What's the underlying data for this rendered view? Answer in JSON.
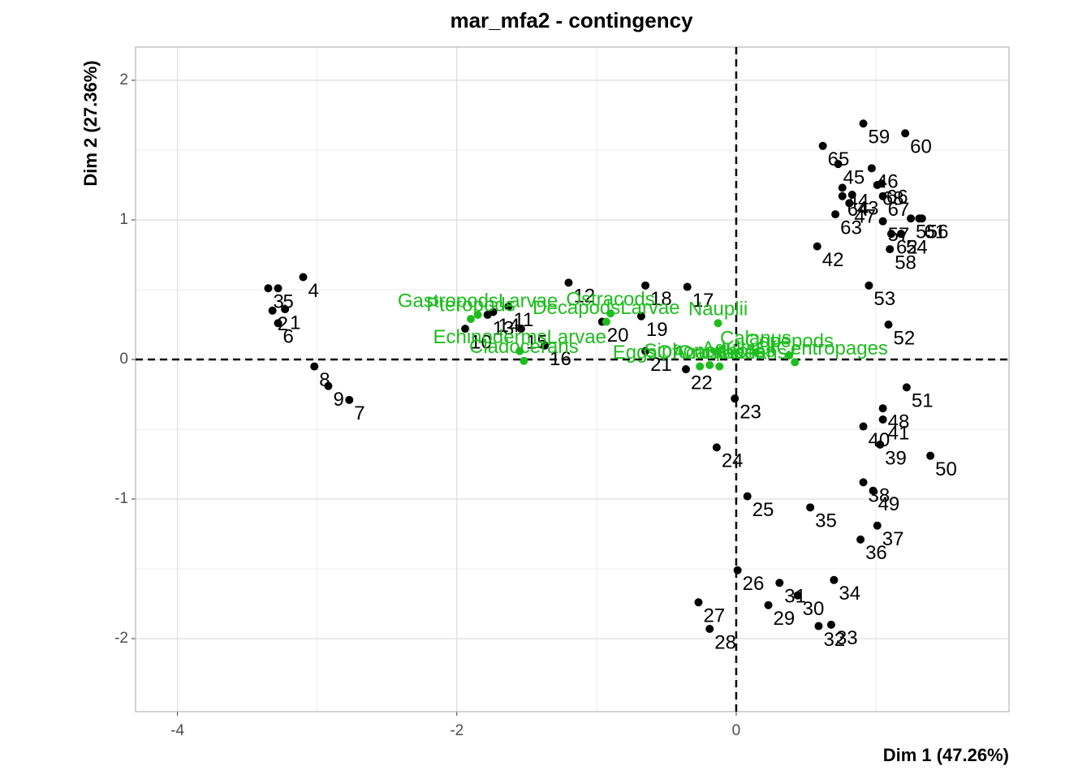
{
  "chart_data": {
    "type": "scatter",
    "title": "mar_mfa2 - contingency",
    "x_label": "Dim 1 (47.26%)",
    "y_label": "Dim 2 (27.36%)",
    "xlim": [
      -4.3,
      1.953
    ],
    "ylim": [
      -2.523,
      2.238
    ],
    "xticks": [
      -4,
      -2,
      0
    ],
    "yticks": [
      -2,
      -1,
      0,
      1,
      2
    ],
    "minor_xticks": [
      -3,
      -1,
      1
    ],
    "minor_yticks": [
      -1.5,
      -0.5,
      0.5,
      1.5
    ],
    "refline_x": 0,
    "refline_y": 0,
    "grid": true,
    "groups": [
      {
        "color": "#000000",
        "labels": [
          "1",
          "2",
          "3",
          "4",
          "5",
          "6",
          "7",
          "8",
          "9",
          "10",
          "11",
          "12",
          "13",
          "14",
          "15",
          "16",
          "17",
          "18",
          "19",
          "20",
          "21",
          "22",
          "23",
          "24",
          "25",
          "26",
          "27",
          "28",
          "29",
          "30",
          "31",
          "32",
          "33",
          "34",
          "35",
          "36",
          "37",
          "38",
          "39",
          "40",
          "41",
          "42",
          "43",
          "44",
          "45",
          "46",
          "47",
          "48",
          "49",
          "50",
          "51",
          "52",
          "53",
          "54",
          "55",
          "56",
          "57",
          "58",
          "59",
          "60",
          "61",
          "62",
          "63",
          "64",
          "65",
          "66",
          "67",
          "68"
        ],
        "x": [
          -3.23,
          -3.32,
          -3.35,
          -3.1,
          -3.28,
          -3.28,
          -2.77,
          -3.02,
          -2.92,
          -1.94,
          -1.63,
          -1.2,
          -1.78,
          -1.74,
          -1.54,
          -1.37,
          -0.35,
          -0.65,
          -0.68,
          -0.96,
          -0.65,
          -0.36,
          -0.01,
          -0.14,
          0.08,
          0.01,
          -0.27,
          -0.19,
          0.23,
          0.44,
          0.31,
          0.59,
          0.68,
          0.7,
          0.53,
          0.89,
          1.01,
          0.91,
          1.03,
          0.91,
          1.05,
          0.58,
          0.83,
          0.76,
          0.73,
          0.97,
          0.81,
          1.05,
          0.98,
          1.39,
          1.22,
          1.09,
          0.95,
          1.18,
          1.25,
          1.33,
          1.05,
          1.1,
          0.91,
          1.21,
          1.31,
          1.11,
          0.71,
          0.76,
          0.62,
          1.04,
          1.05,
          1.01
        ],
        "y": [
          0.36,
          0.35,
          0.51,
          0.59,
          0.51,
          0.26,
          -0.29,
          -0.05,
          -0.19,
          0.22,
          0.38,
          0.55,
          0.32,
          0.34,
          0.22,
          0.1,
          0.52,
          0.53,
          0.31,
          0.27,
          0.06,
          -0.07,
          -0.28,
          -0.63,
          -0.98,
          -1.51,
          -1.74,
          -1.93,
          -1.76,
          -1.69,
          -1.6,
          -1.91,
          -1.9,
          -1.58,
          -1.06,
          -1.29,
          -1.19,
          -0.88,
          -0.61,
          -0.48,
          -0.43,
          0.81,
          1.18,
          1.23,
          1.4,
          1.37,
          1.12,
          -0.35,
          -0.94,
          -0.69,
          -0.2,
          0.25,
          0.53,
          0.9,
          1.01,
          1.01,
          0.99,
          0.79,
          1.69,
          1.62,
          1.01,
          0.9,
          1.04,
          1.17,
          1.53,
          1.26,
          1.17,
          1.25
        ]
      },
      {
        "color": "#1ebd1e",
        "labels": [
          "Pteropods",
          "GastropodsLarvae",
          "EchinodermsLarvae",
          "Cladocerans",
          "Ostracods",
          "DecapodsLarvae",
          "EggsOfCrustaceans",
          "Siphonophores",
          "Acantharia",
          "Nauplii",
          "Calanus",
          "Copepods",
          "AdultsOfCentropages"
        ],
        "x": [
          -1.9,
          -1.85,
          -1.55,
          -1.52,
          -0.9,
          -0.93,
          -0.26,
          -0.19,
          -0.12,
          -0.13,
          0.14,
          0.38,
          0.42
        ],
        "y": [
          0.29,
          0.32,
          0.06,
          -0.01,
          0.33,
          0.27,
          -0.05,
          -0.04,
          -0.05,
          0.26,
          0.05,
          0.03,
          -0.02
        ]
      }
    ]
  }
}
